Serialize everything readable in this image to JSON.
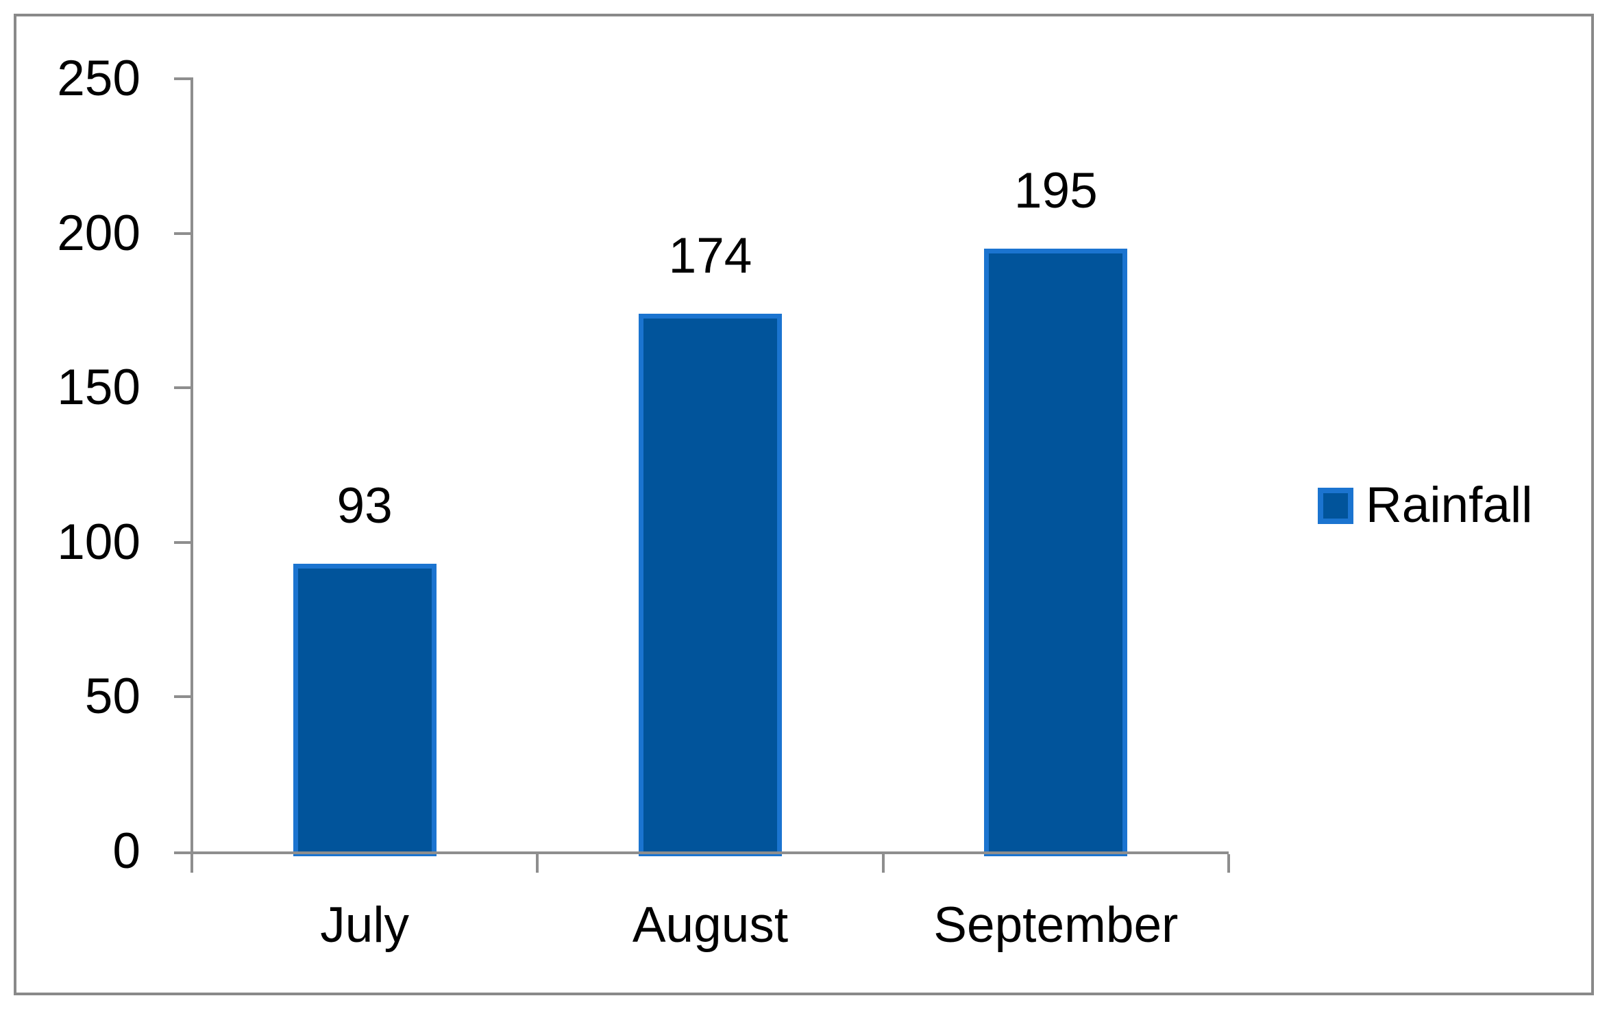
{
  "chart_data": {
    "type": "bar",
    "title": "",
    "categories": [
      "July",
      "August",
      "September"
    ],
    "series": [
      {
        "name": "Rainfall",
        "values": [
          93,
          174,
          195
        ]
      }
    ],
    "data_labels": [
      "93",
      "174",
      "195"
    ],
    "yticks": [
      "0",
      "50",
      "100",
      "150",
      "200",
      "250"
    ],
    "ytick_values": [
      0,
      50,
      100,
      150,
      200,
      250
    ],
    "ylim": [
      0,
      250
    ],
    "xlabel": "",
    "ylabel": "",
    "grid": false,
    "legend_position": "right",
    "colors": {
      "bar_fill": "#01549b",
      "bar_border": "#1b74d0",
      "axis_line": "#8e8e8e",
      "chart_border": "#898989",
      "text": "#000000"
    }
  },
  "legend": {
    "items": [
      {
        "label": "Rainfall"
      }
    ]
  }
}
